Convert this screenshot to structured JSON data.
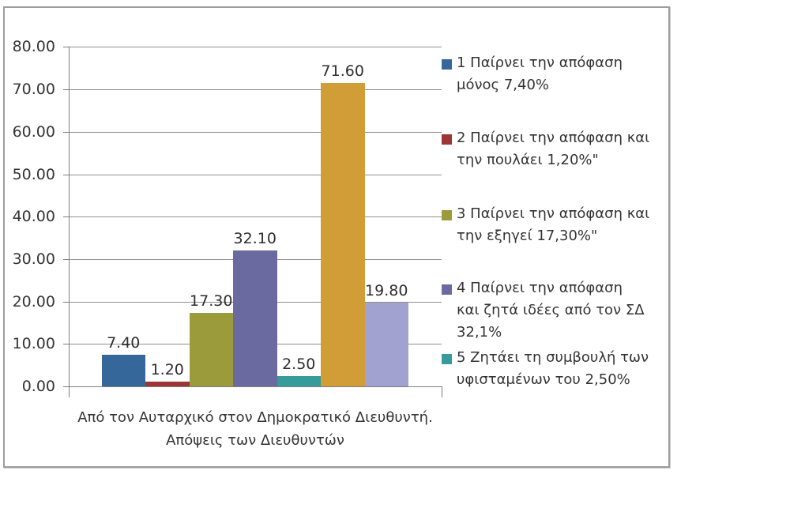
{
  "chart_data": {
    "type": "bar",
    "title": "",
    "categories": [
      "Από τον Αυταρχικό στον Δημοκρατικό Διευθυντή. Απόψεις των Διευθυντών"
    ],
    "series": [
      {
        "name": "1 Παίρνει την απόφαση μόνος 7,40%",
        "value": 7.4,
        "data_label": "7.40",
        "color": "#35679B"
      },
      {
        "name": "2 Παίρνει την απόφαση και την πουλάει 1,20%\"",
        "value": 1.2,
        "data_label": "1.20",
        "color": "#9B3536"
      },
      {
        "name": "3 Παίρνει την απόφαση και την εξηγεί 17,30%\"",
        "value": 17.3,
        "data_label": "17.30",
        "color": "#9C9B3B"
      },
      {
        "name": "4  Παίρνει την απόφαση και ζητά ιδέες από τον ΣΔ 32,1%",
        "value": 32.1,
        "data_label": "32.10",
        "color": "#6B6AA0"
      },
      {
        "name": "5 Ζητάει τη συμβουλή των υφισταμένων του 2,50%",
        "value": 2.5,
        "data_label": "2.50",
        "color": "#359C9B"
      },
      {
        "name": "",
        "value": 71.6,
        "data_label": "71.60",
        "color": "#D09D36"
      },
      {
        "name": "",
        "value": 19.8,
        "data_label": "19.80",
        "color": "#A2A2D0"
      }
    ],
    "ylim": [
      0,
      80
    ],
    "ytick_step": 10,
    "ytick_labels": [
      "80.00",
      "70.00",
      "60.00",
      "50.00",
      "40.00",
      "30.00",
      "20.00",
      "10.00",
      "0.00"
    ],
    "grid": true,
    "legend_position": "right",
    "xlabel": "Από τον Αυταρχικό στον Δημοκρατικό Διευθυντή. Απόψεις των Διευθυντών"
  },
  "legend": {
    "entries": [
      {
        "lines": [
          "1 Παίρνει την απόφαση",
          "μόνος 7,40%"
        ],
        "color": "#35679B"
      },
      {
        "lines": [
          "2 Παίρνει την απόφαση και",
          "την πουλάει 1,20%\""
        ],
        "color": "#9B3536"
      },
      {
        "lines": [
          "3 Παίρνει την απόφαση και",
          "την εξηγεί 17,30%\""
        ],
        "color": "#9C9B3B"
      },
      {
        "lines": [
          "4  Παίρνει την απόφαση",
          "και ζητά ιδέες από τον ΣΔ",
          "32,1%"
        ],
        "color": "#6B6AA0"
      },
      {
        "lines": [
          "5 Ζητάει τη συμβουλή των",
          "υφισταμένων του 2,50%"
        ],
        "color": "#359C9B"
      }
    ]
  },
  "x_axis_title": {
    "lines": [
      "Από τον Αυταρχικό στον Δημοκρατικό Διευθυντή.",
      "Απόψεις των Διευθυντών"
    ]
  },
  "colors": {
    "gridline": "#8F8F8F",
    "axis": "#7F7F7F",
    "frame": "#9E9E9E",
    "text": "#343434"
  }
}
